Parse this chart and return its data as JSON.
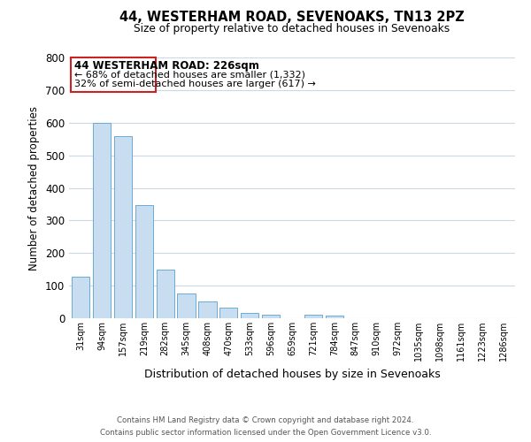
{
  "title": "44, WESTERHAM ROAD, SEVENOAKS, TN13 2PZ",
  "subtitle": "Size of property relative to detached houses in Sevenoaks",
  "bar_labels": [
    "31sqm",
    "94sqm",
    "157sqm",
    "219sqm",
    "282sqm",
    "345sqm",
    "408sqm",
    "470sqm",
    "533sqm",
    "596sqm",
    "659sqm",
    "721sqm",
    "784sqm",
    "847sqm",
    "910sqm",
    "972sqm",
    "1035sqm",
    "1098sqm",
    "1161sqm",
    "1223sqm",
    "1286sqm"
  ],
  "bar_values": [
    128,
    600,
    560,
    348,
    148,
    75,
    52,
    33,
    15,
    12,
    0,
    10,
    8,
    0,
    0,
    0,
    0,
    0,
    0,
    0,
    0
  ],
  "bar_color": "#c9ddf0",
  "bar_edge_color": "#6aaad4",
  "ylabel": "Number of detached properties",
  "xlabel": "Distribution of detached houses by size in Sevenoaks",
  "ylim": [
    0,
    800
  ],
  "yticks": [
    0,
    100,
    200,
    300,
    400,
    500,
    600,
    700,
    800
  ],
  "annotation_title": "44 WESTERHAM ROAD: 226sqm",
  "annotation_line1": "← 68% of detached houses are smaller (1,332)",
  "annotation_line2": "32% of semi-detached houses are larger (617) →",
  "bg_color": "#ffffff",
  "grid_color": "#ccd8ea",
  "footer_line1": "Contains HM Land Registry data © Crown copyright and database right 2024.",
  "footer_line2": "Contains public sector information licensed under the Open Government Licence v3.0."
}
